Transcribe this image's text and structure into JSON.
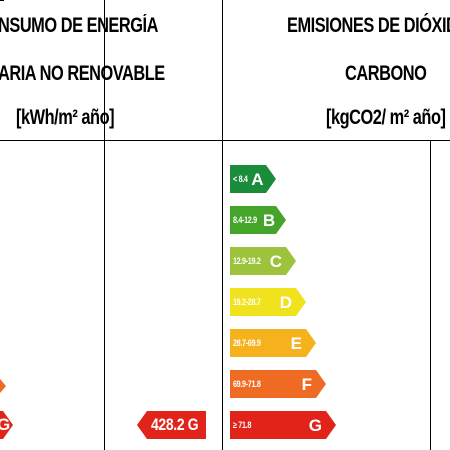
{
  "energy": {
    "title_line1": "NSUMO DE ENERGÍA",
    "title_line2": "ARIA NO RENOVABLE",
    "unit": "[kWh/m² año]",
    "marker_value": "428.2 G",
    "partial_letter": "G"
  },
  "emissions": {
    "title_line1": "EMISIONES DE DIÓXID",
    "title_line2": "CARBONO",
    "unit": "[kgCO2/ m² año]"
  },
  "ratings": [
    {
      "range": "< 8.4",
      "letter": "A",
      "color": "#1a8c3a"
    },
    {
      "range": "8.4-12.9",
      "letter": "B",
      "color": "#45a52b"
    },
    {
      "range": "12.9-19.2",
      "letter": "C",
      "color": "#9cc33b"
    },
    {
      "range": "19.2-28.7",
      "letter": "D",
      "color": "#f1e21e"
    },
    {
      "range": "28.7-69.9",
      "letter": "E",
      "color": "#f5b21c"
    },
    {
      "range": "69.9-71.8",
      "letter": "F",
      "color": "#ef6b23"
    },
    {
      "range": "≥ 71.8",
      "letter": "G",
      "color": "#e2231a"
    }
  ],
  "colors": {
    "marker": "#e2231a",
    "partial_orange": "#ef6b23"
  }
}
